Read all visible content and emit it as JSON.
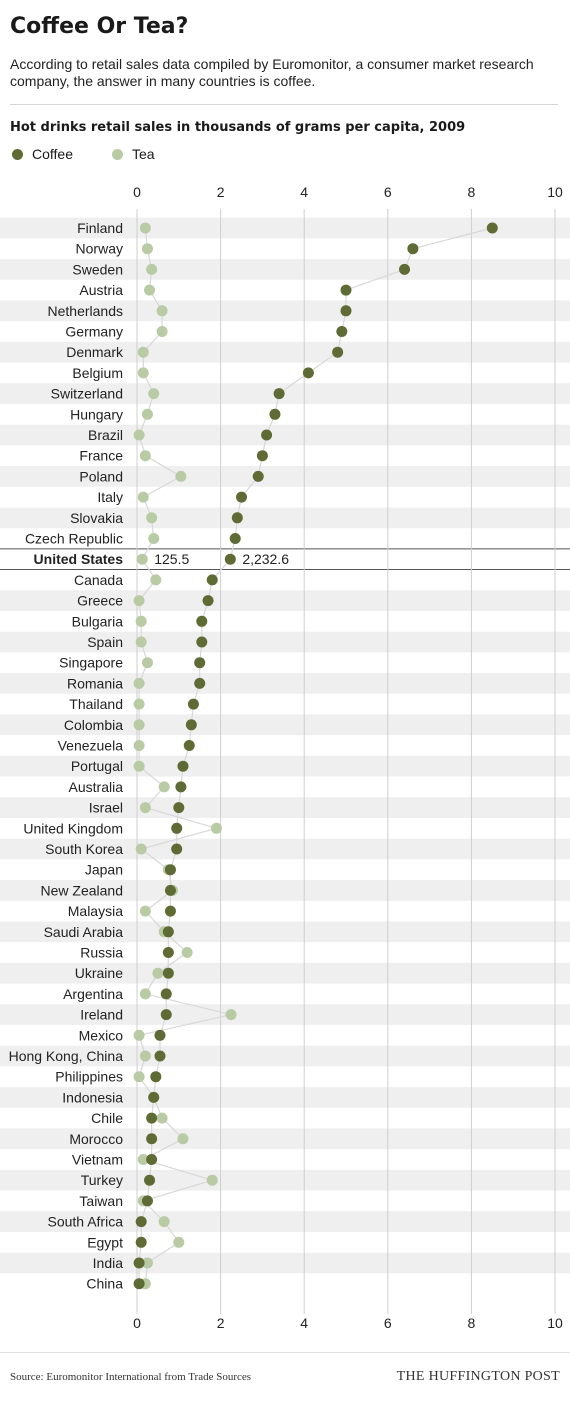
{
  "header": {
    "title": "Coffee Or Tea?",
    "subtitle": "According to retail sales data compiled by Euromonitor, a consumer market research company, the answer in many countries is coffee."
  },
  "colors": {
    "coffee": "#5e6b35",
    "tea": "#b8cba4",
    "connector": "#d8d8d8",
    "stripe": "#efefef"
  },
  "chart_data": {
    "type": "scatter",
    "title": "Hot drinks retail sales in thousands of grams per capita, 2009",
    "xlim": [
      0,
      10
    ],
    "xticks": [
      "0",
      "2",
      "4",
      "6",
      "8",
      "10"
    ],
    "legend": {
      "placement": "top-left",
      "entries": [
        "Coffee",
        "Tea"
      ]
    },
    "highlight": {
      "country": "United States",
      "tea_label": "125.5",
      "coffee_label": "2,232.6"
    },
    "series": [
      {
        "name": "Coffee",
        "color": "#5e6b35"
      },
      {
        "name": "Tea",
        "color": "#b8cba4"
      }
    ],
    "countries": [
      "Finland",
      "Norway",
      "Sweden",
      "Austria",
      "Netherlands",
      "Germany",
      "Denmark",
      "Belgium",
      "Switzerland",
      "Hungary",
      "Brazil",
      "France",
      "Poland",
      "Italy",
      "Slovakia",
      "Czech Republic",
      "United States",
      "Canada",
      "Greece",
      "Bulgaria",
      "Spain",
      "Singapore",
      "Romania",
      "Thailand",
      "Colombia",
      "Venezuela",
      "Portugal",
      "Australia",
      "Israel",
      "United Kingdom",
      "South Korea",
      "Japan",
      "New Zealand",
      "Malaysia",
      "Saudi Arabia",
      "Russia",
      "Ukraine",
      "Argentina",
      "Ireland",
      "Mexico",
      "Hong Kong, China",
      "Philippines",
      "Indonesia",
      "Chile",
      "Morocco",
      "Vietnam",
      "Turkey",
      "Taiwan",
      "South Africa",
      "Egypt",
      "India",
      "China"
    ],
    "coffee": [
      8.5,
      6.6,
      6.4,
      5.0,
      5.0,
      4.9,
      4.8,
      4.1,
      3.4,
      3.3,
      3.1,
      3.0,
      2.9,
      2.5,
      2.4,
      2.35,
      2.2326,
      1.8,
      1.7,
      1.55,
      1.55,
      1.5,
      1.5,
      1.35,
      1.3,
      1.25,
      1.1,
      1.05,
      1.0,
      0.95,
      0.95,
      0.8,
      0.8,
      0.8,
      0.75,
      0.75,
      0.75,
      0.7,
      0.7,
      0.55,
      0.55,
      0.45,
      0.4,
      0.35,
      0.35,
      0.35,
      0.3,
      0.25,
      0.1,
      0.1,
      0.05,
      0.05
    ],
    "tea": [
      0.2,
      0.25,
      0.35,
      0.3,
      0.6,
      0.6,
      0.15,
      0.15,
      0.4,
      0.25,
      0.05,
      0.2,
      1.05,
      0.15,
      0.35,
      0.4,
      0.1255,
      0.45,
      0.05,
      0.1,
      0.1,
      0.25,
      0.05,
      0.05,
      0.05,
      0.05,
      0.05,
      0.65,
      0.2,
      1.9,
      0.1,
      0.75,
      0.85,
      0.2,
      0.65,
      1.2,
      0.5,
      0.2,
      2.25,
      0.05,
      0.2,
      0.05,
      0.4,
      0.6,
      1.1,
      0.15,
      1.8,
      0.15,
      0.65,
      1.0,
      0.25,
      0.2
    ]
  },
  "footer": {
    "source": "Source: Euromonitor International from Trade Sources",
    "brand": "THE HUFFINGTON POST"
  }
}
